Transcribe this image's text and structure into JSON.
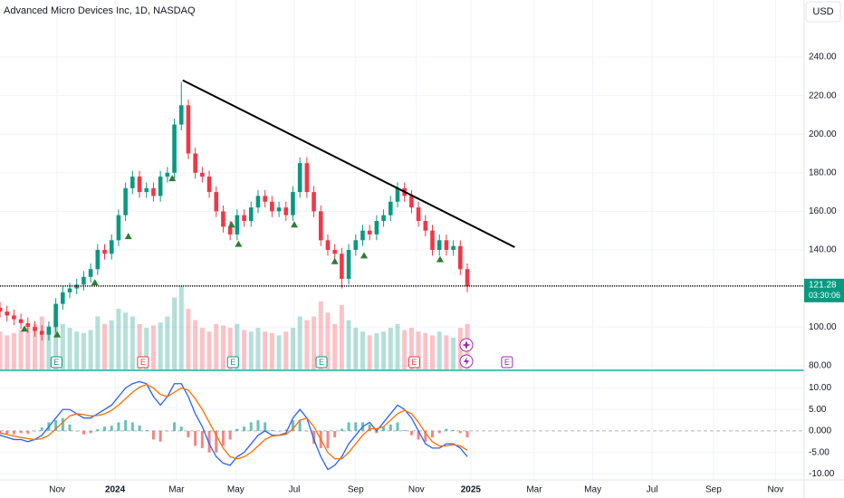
{
  "chart_data": {
    "type": "candlestick",
    "title": "Advanced Micro Devices Inc, 1D, NASDAQ",
    "currency": "USD",
    "x": [
      0,
      1,
      2,
      3,
      4,
      5,
      6,
      7,
      8,
      9,
      10,
      11,
      12,
      13,
      14,
      15,
      16,
      17,
      18,
      19,
      20,
      21,
      22,
      23,
      24,
      25,
      26,
      27,
      28,
      29,
      30,
      31,
      32,
      33,
      34,
      35,
      36,
      37,
      38,
      39,
      40,
      41,
      42,
      43,
      44,
      45,
      46,
      47,
      48,
      49,
      50,
      51,
      52,
      53,
      54,
      55,
      56,
      57,
      58,
      59,
      60,
      61,
      62,
      63,
      64,
      65,
      66,
      67
    ],
    "open": [
      110,
      108,
      106,
      104,
      102,
      100,
      98,
      96,
      100,
      112,
      118,
      120,
      122,
      126,
      130,
      140,
      138,
      145,
      158,
      172,
      178,
      170,
      172,
      168,
      178,
      180,
      205,
      215,
      190,
      180,
      178,
      170,
      160,
      152,
      148,
      158,
      155,
      162,
      168,
      165,
      160,
      162,
      158,
      170,
      185,
      170,
      160,
      145,
      140,
      138,
      125,
      140,
      145,
      150,
      148,
      155,
      158,
      165,
      172,
      168,
      162,
      155,
      150,
      140,
      145,
      140,
      142,
      130
    ],
    "high": [
      113,
      111,
      109,
      107,
      105,
      103,
      101,
      103,
      115,
      121,
      123,
      125,
      129,
      133,
      143,
      143,
      148,
      161,
      175,
      181,
      181,
      175,
      175,
      181,
      183,
      208,
      227,
      218,
      193,
      183,
      181,
      173,
      163,
      155,
      161,
      161,
      165,
      171,
      171,
      168,
      165,
      165,
      173,
      188,
      188,
      173,
      163,
      148,
      143,
      141,
      143,
      148,
      153,
      153,
      158,
      161,
      168,
      175,
      175,
      171,
      165,
      158,
      153,
      148,
      148,
      145,
      145,
      133
    ],
    "low": [
      105,
      103,
      101,
      99,
      97,
      95,
      93,
      93,
      97,
      109,
      115,
      117,
      119,
      123,
      127,
      135,
      135,
      142,
      155,
      169,
      167,
      167,
      165,
      165,
      175,
      177,
      202,
      187,
      177,
      175,
      167,
      157,
      149,
      145,
      145,
      152,
      152,
      159,
      162,
      157,
      157,
      155,
      155,
      167,
      167,
      157,
      142,
      137,
      135,
      120,
      122,
      137,
      142,
      145,
      145,
      152,
      155,
      162,
      165,
      159,
      152,
      147,
      137,
      137,
      137,
      137,
      127,
      118
    ],
    "close": [
      108,
      106,
      104,
      102,
      100,
      98,
      96,
      100,
      112,
      118,
      120,
      122,
      126,
      130,
      140,
      138,
      145,
      158,
      172,
      178,
      170,
      172,
      168,
      178,
      180,
      205,
      215,
      190,
      180,
      178,
      170,
      160,
      152,
      148,
      158,
      155,
      162,
      168,
      165,
      160,
      162,
      158,
      170,
      185,
      170,
      160,
      145,
      140,
      138,
      125,
      140,
      145,
      150,
      148,
      155,
      158,
      165,
      172,
      168,
      162,
      155,
      150,
      140,
      145,
      140,
      142,
      130,
      121.28
    ],
    "volume": [
      50,
      45,
      48,
      52,
      55,
      60,
      70,
      58,
      65,
      60,
      55,
      50,
      48,
      52,
      70,
      60,
      65,
      80,
      75,
      70,
      60,
      55,
      58,
      62,
      70,
      95,
      110,
      80,
      65,
      55,
      50,
      60,
      58,
      55,
      60,
      52,
      50,
      55,
      50,
      48,
      45,
      50,
      55,
      70,
      65,
      70,
      90,
      75,
      60,
      85,
      65,
      55,
      50,
      45,
      48,
      50,
      55,
      60,
      52,
      55,
      50,
      48,
      45,
      50,
      45,
      42,
      55,
      60
    ],
    "up_color": "#089981",
    "down_color": "#f23645",
    "xlim": [
      0,
      115.3
    ],
    "xticks": [
      {
        "value": 8.2,
        "label": "Nov"
      },
      {
        "value": 16.5,
        "label": "2024"
      },
      {
        "value": 25.3,
        "label": "Mar"
      },
      {
        "value": 33.8,
        "label": "May"
      },
      {
        "value": 42.2,
        "label": "Jul"
      },
      {
        "value": 51,
        "label": "Sep"
      },
      {
        "value": 59.7,
        "label": "Nov"
      },
      {
        "value": 67.5,
        "label": "2025"
      },
      {
        "value": 76.6,
        "label": "Mar"
      },
      {
        "value": 85,
        "label": "May"
      },
      {
        "value": 93.5,
        "label": "Jul"
      },
      {
        "value": 102.3,
        "label": "Sep"
      },
      {
        "value": 111.2,
        "label": "Nov"
      }
    ],
    "ylim": [
      78,
      269.6
    ],
    "yticks": [
      {
        "value": 240,
        "label": "240.00"
      },
      {
        "value": 220,
        "label": "220.00"
      },
      {
        "value": 200,
        "label": "200.00"
      },
      {
        "value": 180,
        "label": "180.00"
      },
      {
        "value": 160,
        "label": "160.00"
      },
      {
        "value": 140,
        "label": "140.00"
      },
      {
        "value": 100,
        "label": "100.00"
      },
      {
        "value": 80,
        "label": "80.00"
      }
    ],
    "last_price": 121.28,
    "countdown": "03:30:06",
    "trendline": {
      "x": [
        26.2,
        73.8
      ],
      "y": [
        228,
        141.4
      ],
      "color": "#000000"
    },
    "signals": {
      "x": [
        3.5,
        8.2,
        13.6,
        18.4,
        24.7,
        33.2,
        34.2,
        42.2,
        48,
        52.2,
        63.1
      ],
      "y": [
        99,
        96,
        123,
        147,
        177,
        153,
        143,
        153,
        134,
        137,
        135
      ],
      "color": "#2e7d32"
    },
    "earnings": [
      {
        "x": 8.1,
        "label": "E",
        "color": "#089981"
      },
      {
        "x": 20.5,
        "label": "E",
        "color": "#f23645"
      },
      {
        "x": 33.4,
        "label": "E",
        "color": "#089981"
      },
      {
        "x": 46.1,
        "label": "E",
        "color": "#089981"
      },
      {
        "x": 59.4,
        "label": "E",
        "color": "#f23645"
      },
      {
        "x": 72.7,
        "label": "E",
        "color": "#9c27b0"
      }
    ],
    "macd": {
      "ylim": [
        -11.4,
        13.9
      ],
      "yticks": [
        {
          "value": 10,
          "label": "10.00"
        },
        {
          "value": 5,
          "label": "5.00"
        },
        {
          "value": 0,
          "label": "0.000"
        },
        {
          "value": -5,
          "label": "-5.00"
        },
        {
          "value": -10,
          "label": "-10.00"
        }
      ],
      "series": [
        {
          "color": "#2962ff",
          "values": [
            -1,
            -1.5,
            -2,
            -2,
            -2.5,
            -2,
            -1,
            1,
            3,
            5,
            5,
            4,
            3,
            3,
            4,
            5,
            6,
            8,
            10,
            11,
            11.5,
            11,
            8,
            6,
            8,
            11,
            11,
            8,
            4,
            1,
            -3,
            -6,
            -7.5,
            -8,
            -6,
            -5,
            -3,
            -1,
            0,
            -1,
            -1,
            -0.5,
            3,
            5,
            3,
            -2,
            -6,
            -9,
            -8,
            -6,
            -3,
            -1,
            1,
            2,
            0,
            2,
            4,
            6,
            5,
            3,
            0,
            -3,
            -4,
            -4,
            -3,
            -3,
            -4,
            -6
          ]
        },
        {
          "color": "#ff6d00",
          "values": [
            -0.5,
            -0.8,
            -1.2,
            -1.5,
            -1.8,
            -2,
            -1.8,
            -1,
            0.5,
            2,
            3.5,
            4,
            3.8,
            3.5,
            3.6,
            4,
            4.8,
            6,
            7.5,
            9,
            10.2,
            10.8,
            10,
            8.5,
            8,
            9,
            10,
            9.5,
            7.5,
            5,
            2,
            -1,
            -4,
            -6,
            -6.5,
            -6,
            -5,
            -3.5,
            -2,
            -1.2,
            -1,
            -0.8,
            0.5,
            2.5,
            3,
            1,
            -2,
            -5,
            -6.5,
            -6.5,
            -5,
            -3,
            -1,
            0.5,
            0.5,
            1,
            2.5,
            4,
            4.8,
            4,
            2,
            -0.5,
            -2.5,
            -3.5,
            -3.5,
            -3.2,
            -3.5,
            -4.5
          ]
        }
      ],
      "histogram": [
        -0.5,
        -0.7,
        -0.8,
        -0.5,
        -0.7,
        0,
        0.8,
        2,
        2.5,
        3,
        1.5,
        0,
        -0.8,
        -0.5,
        0.4,
        1,
        1.2,
        2,
        2.5,
        2,
        1.3,
        0.2,
        -2,
        -2.5,
        0,
        2,
        1,
        -1.5,
        -3.5,
        -4,
        -5,
        -5,
        -3.5,
        -2,
        0.5,
        1,
        2,
        2.5,
        2,
        0.2,
        0,
        0.3,
        2.5,
        2.5,
        0,
        -3,
        -4,
        -4,
        -1.5,
        0.5,
        2,
        2,
        2,
        1.5,
        -0.5,
        1,
        1.5,
        2,
        0.2,
        -1,
        -2,
        -2.5,
        -1.5,
        -0.5,
        0.5,
        0.2,
        -0.5,
        -1.5
      ],
      "hist_up_color": "#26a69a",
      "hist_down_color": "#ef5350"
    }
  }
}
